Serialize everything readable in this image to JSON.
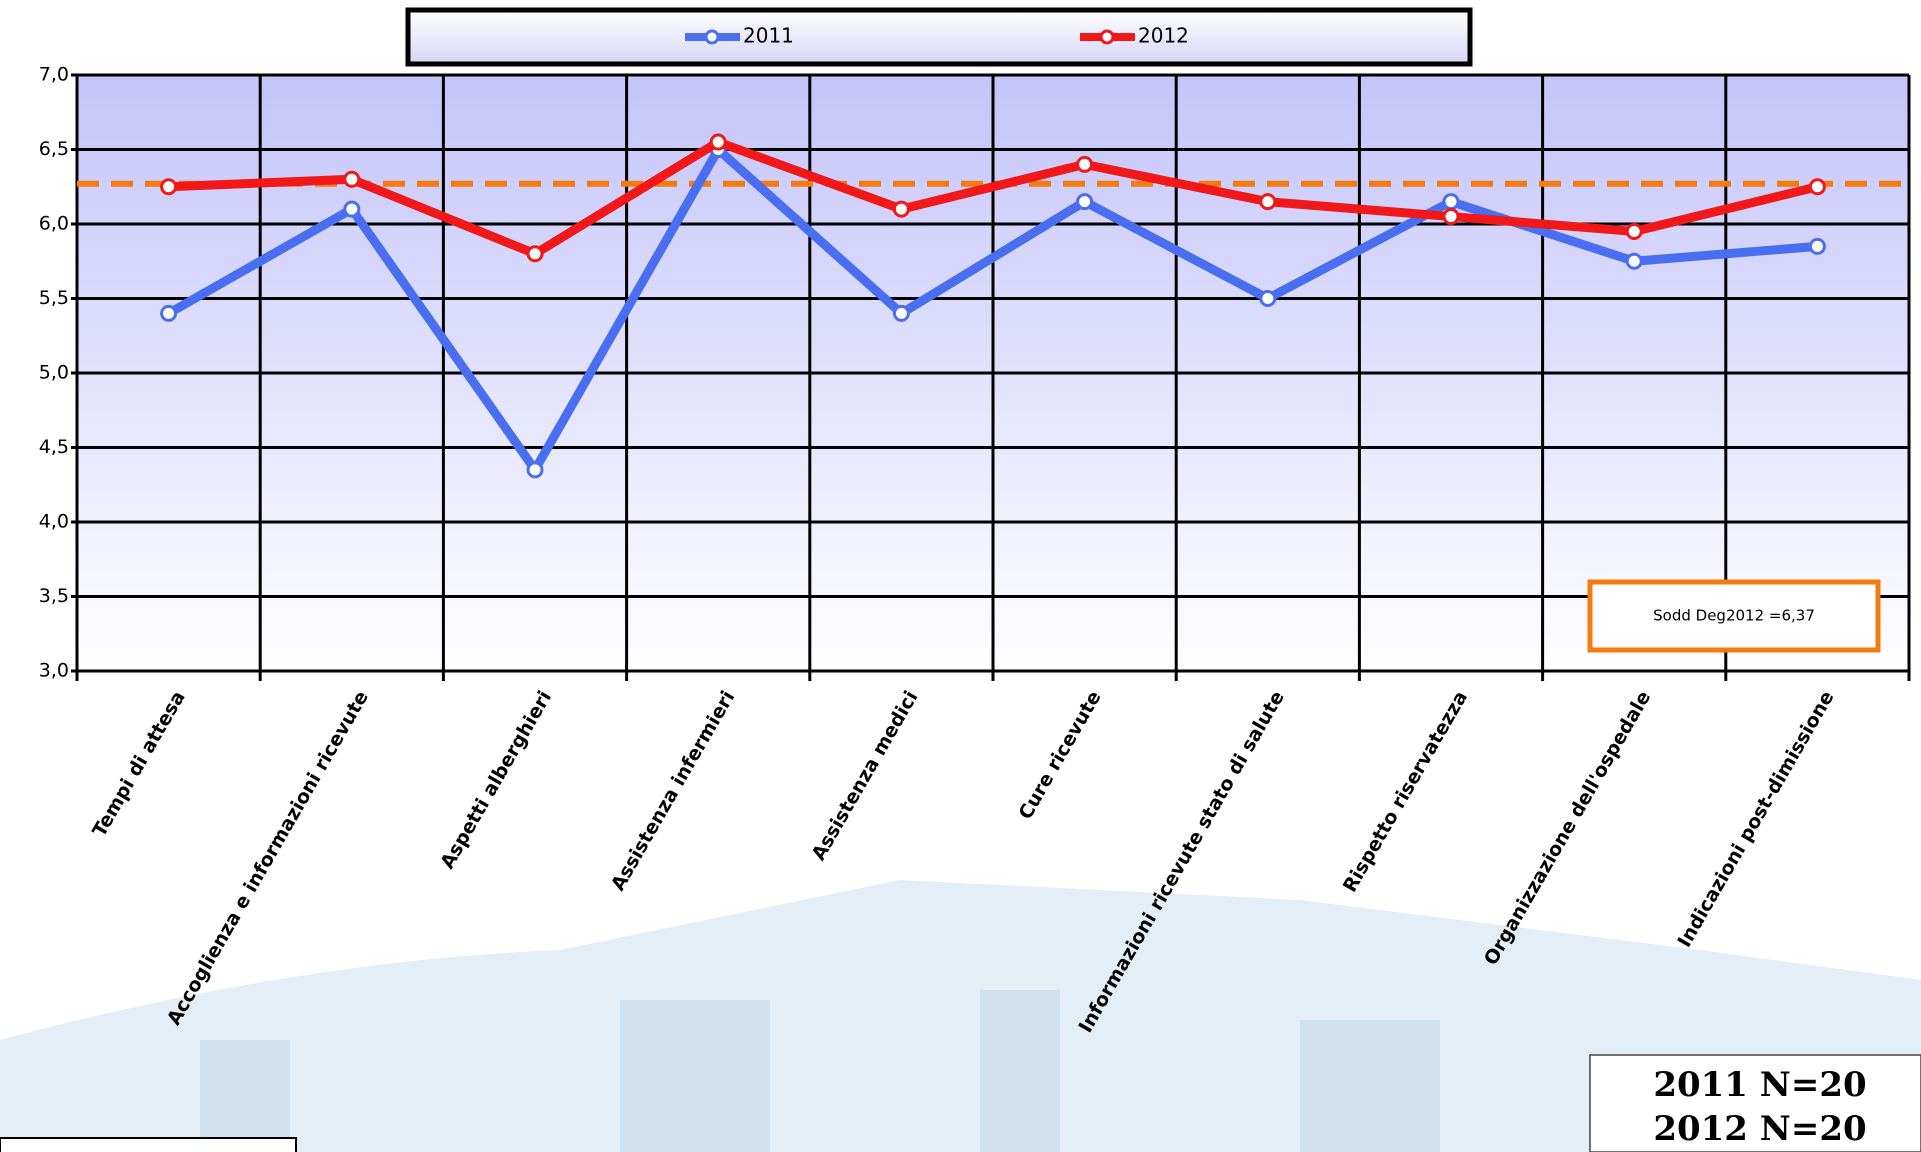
{
  "chart_data": {
    "type": "line",
    "categories": [
      "Tempi di attesa",
      "Accoglienza e informazioni ricevute",
      "Aspetti alberghieri",
      "Assistenza infermieri",
      "Assistenza medici",
      "Cure ricevute",
      "Informazioni ricevute stato di salute",
      "Rispetto riservatezza",
      "Organizzazione dell'ospedale",
      "Indicazioni post-dimissione"
    ],
    "series": [
      {
        "name": "2011",
        "color": "#4a6ef0",
        "values": [
          5.4,
          6.1,
          4.35,
          6.5,
          5.4,
          6.15,
          5.5,
          6.15,
          5.75,
          5.85
        ]
      },
      {
        "name": "2012",
        "color": "#f01818",
        "values": [
          6.25,
          6.3,
          5.8,
          6.55,
          6.1,
          6.4,
          6.15,
          6.05,
          5.95,
          6.25
        ]
      }
    ],
    "ylim": [
      3,
      7
    ],
    "yticks": [
      {
        "value": 3,
        "label": "3,0"
      },
      {
        "value": 3.5,
        "label": "3,5"
      },
      {
        "value": 4,
        "label": "4,0"
      },
      {
        "value": 4.5,
        "label": "4,5"
      },
      {
        "value": 5,
        "label": "5,0"
      },
      {
        "value": 5.5,
        "label": "5,5"
      },
      {
        "value": 6,
        "label": "6,0"
      },
      {
        "value": 6.5,
        "label": "6,5"
      },
      {
        "value": 7,
        "label": "7,0"
      }
    ],
    "grid": true,
    "reference_line": {
      "value": 6.27,
      "color": "#f57a10"
    },
    "annotation": "Sodd Deg2012 =6,37",
    "notes": [
      "2011 N=20",
      "2012 N=20"
    ]
  }
}
